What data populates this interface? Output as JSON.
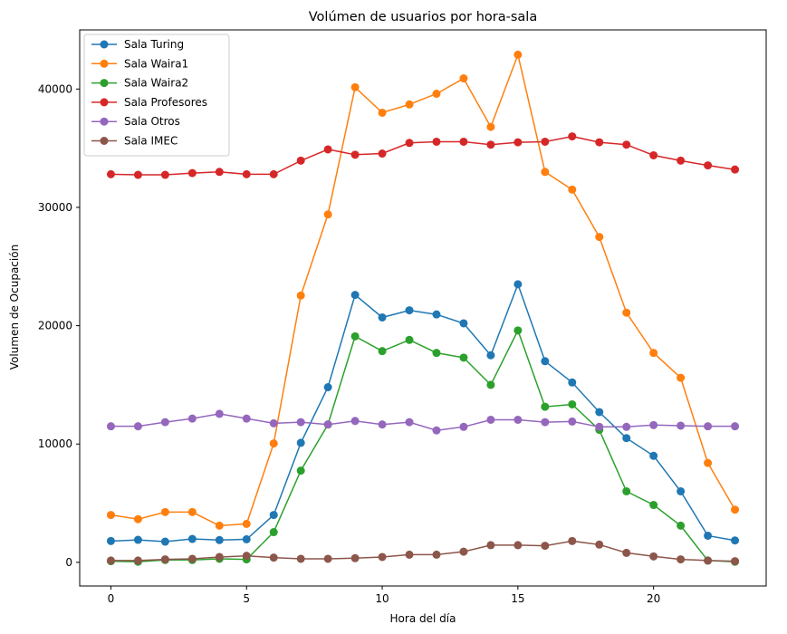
{
  "chart_data": {
    "type": "line",
    "title": "Volúmen de usuarios por hora-sala",
    "xlabel": "Hora del día",
    "ylabel": "Volumen de Ocupación",
    "xlim": [
      -1.15,
      24.15
    ],
    "ylim": [
      -2000,
      45000
    ],
    "xticks": [
      0,
      5,
      10,
      15,
      20
    ],
    "yticks": [
      0,
      10000,
      20000,
      30000,
      40000
    ],
    "grid": false,
    "legend": "top-left",
    "x": [
      0,
      1,
      2,
      3,
      4,
      5,
      6,
      7,
      8,
      9,
      10,
      11,
      12,
      13,
      14,
      15,
      16,
      17,
      18,
      19,
      20,
      21,
      22,
      23
    ],
    "series": [
      {
        "name": "Sala Turing",
        "color": "#1f77b4",
        "values": [
          1800,
          1900,
          1750,
          1980,
          1880,
          1950,
          4000,
          10100,
          14800,
          22600,
          20700,
          21300,
          20950,
          20200,
          17500,
          23500,
          17000,
          15200,
          12700,
          10500,
          9000,
          6000,
          2250,
          1850
        ]
      },
      {
        "name": "Sala Waira1",
        "color": "#ff7f0e",
        "values": [
          4000,
          3650,
          4250,
          4250,
          3100,
          3250,
          10050,
          22550,
          29400,
          40150,
          38000,
          38700,
          39600,
          40900,
          36800,
          42900,
          33000,
          31500,
          27500,
          21100,
          17700,
          15600,
          8400,
          4450
        ]
      },
      {
        "name": "Sala Waira2",
        "color": "#2ca02c",
        "values": [
          100,
          50,
          200,
          200,
          300,
          250,
          2550,
          7750,
          11650,
          19100,
          17850,
          18800,
          17700,
          17300,
          15000,
          19600,
          13150,
          13350,
          11200,
          6000,
          4850,
          3100,
          150,
          50
        ]
      },
      {
        "name": "Sala Profesores",
        "color": "#d62728",
        "values": [
          32800,
          32750,
          32750,
          32900,
          33000,
          32800,
          32800,
          33950,
          34900,
          34450,
          34550,
          35450,
          35550,
          35550,
          35300,
          35500,
          35550,
          36000,
          35500,
          35300,
          34400,
          33950,
          33550,
          33200
        ]
      },
      {
        "name": "Sala Otros",
        "color": "#9467bd",
        "values": [
          11500,
          11500,
          11850,
          12150,
          12550,
          12150,
          11750,
          11850,
          11650,
          11950,
          11650,
          11850,
          11150,
          11450,
          12050,
          12050,
          11850,
          11900,
          11450,
          11450,
          11600,
          11550,
          11500,
          11500
        ]
      },
      {
        "name": "Sala IMEC",
        "color": "#8c564b",
        "values": [
          150,
          150,
          250,
          300,
          450,
          550,
          400,
          300,
          300,
          350,
          450,
          650,
          650,
          900,
          1450,
          1450,
          1400,
          1800,
          1500,
          800,
          500,
          250,
          150,
          100
        ]
      }
    ]
  }
}
